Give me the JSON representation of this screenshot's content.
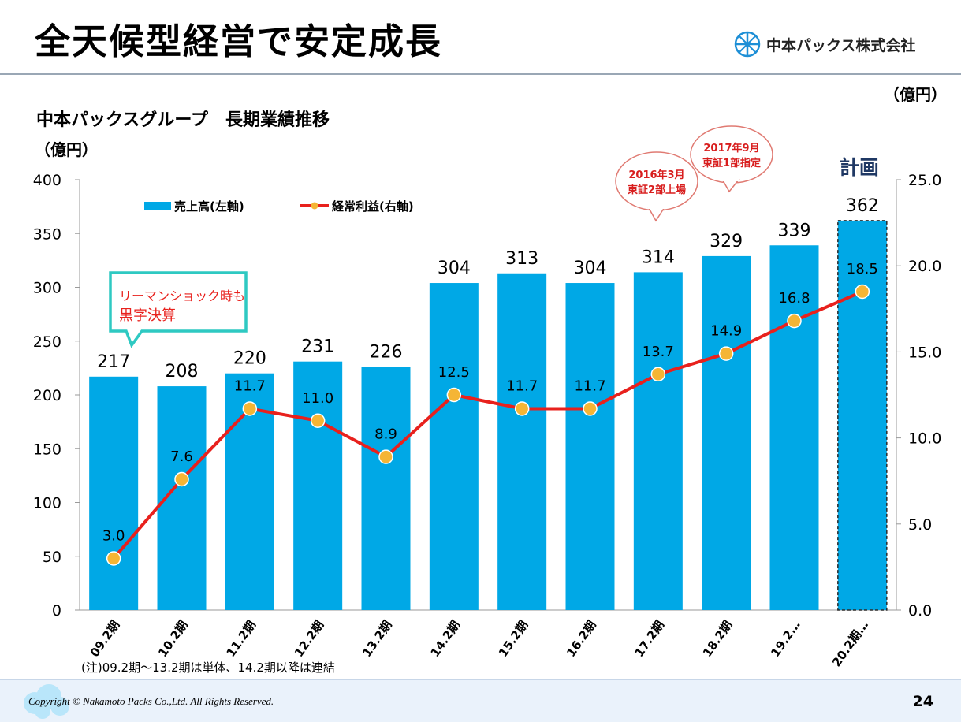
{
  "header": {
    "title": "全天候型経営で安定成長",
    "company_logo_text": "中本パックス株式会社",
    "unit_top": "（億円）"
  },
  "colors": {
    "bar": "#00a8e6",
    "line": "#e8211d",
    "marker": "#f5b535",
    "plan_border": "#2a2a2a"
  },
  "chart_data": {
    "type": "bar",
    "title": "中本パックスグループ　長期業績推移",
    "ylabel": "（億円）",
    "y2label": "（億円）",
    "categories": [
      "09.2期",
      "10.2期",
      "11.2期",
      "12.2期",
      "13.2期",
      "14.2期",
      "15.2期",
      "16.2期",
      "17.2期",
      "18.2期",
      "19.2…",
      "20.2期…"
    ],
    "ylim": [
      0,
      400
    ],
    "y2lim": [
      0,
      25
    ],
    "yticks": [
      "0",
      "50",
      "100",
      "150",
      "200",
      "250",
      "300",
      "350",
      "400"
    ],
    "y2ticks": [
      "0.0",
      "5.0",
      "10.0",
      "15.0",
      "20.0",
      "25.0"
    ],
    "series": [
      {
        "name": "売上高(左軸)",
        "type": "bar",
        "axis": "left",
        "values": [
          217,
          208,
          220,
          231,
          226,
          304,
          313,
          304,
          314,
          329,
          339,
          362
        ],
        "labels": [
          "217",
          "208",
          "220",
          "231",
          "226",
          "304",
          "313",
          "304",
          "314",
          "329",
          "339",
          "362"
        ]
      },
      {
        "name": "経常利益(右軸)",
        "type": "line",
        "axis": "right",
        "values": [
          3.0,
          7.6,
          11.7,
          11.0,
          8.9,
          12.5,
          11.7,
          11.7,
          13.7,
          14.9,
          16.8,
          18.5
        ],
        "labels": [
          "3.0",
          "7.6",
          "11.7",
          "11.0",
          "8.9",
          "12.5",
          "11.7",
          "11.7",
          "13.7",
          "14.9",
          "16.8",
          "18.5"
        ]
      }
    ],
    "plan_label": "計画",
    "plan_index": 11,
    "annotations": {
      "lehman": [
        "リーマンショック時も",
        "黒字決算"
      ],
      "listing_2016": [
        "2016年3月",
        "東証2部上場"
      ],
      "listing_2017": [
        "2017年9月",
        "東証1部指定"
      ]
    },
    "note": "(注)09.2期～13.2期は単体、14.2期以降は連結"
  },
  "footer": {
    "copyright": "Copyright © Nakamoto Packs Co.,Ltd. All Rights Reserved.",
    "page": "24"
  }
}
